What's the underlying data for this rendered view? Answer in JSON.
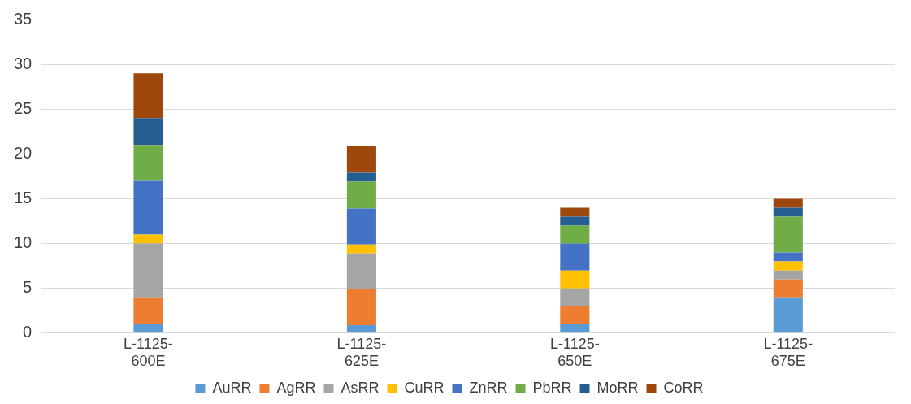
{
  "chart_data": {
    "type": "bar",
    "stacked": true,
    "categories": [
      "L-1125-600E",
      "L-1125-625E",
      "L-1125-650E",
      "L-1125-675E"
    ],
    "series": [
      {
        "name": "AuRR",
        "color": "#5b9bd5",
        "values": [
          1,
          0.9,
          1,
          4
        ]
      },
      {
        "name": "AgRR",
        "color": "#ed7d31",
        "values": [
          3,
          4,
          2,
          2
        ]
      },
      {
        "name": "AsRR",
        "color": "#a5a5a5",
        "values": [
          6,
          4,
          2,
          1
        ]
      },
      {
        "name": "CuRR",
        "color": "#ffc000",
        "values": [
          1,
          1,
          2,
          1
        ]
      },
      {
        "name": "ZnRR",
        "color": "#4472c4",
        "values": [
          6,
          4,
          3,
          1
        ]
      },
      {
        "name": "PbRR",
        "color": "#70ad47",
        "values": [
          4,
          3,
          2,
          4
        ]
      },
      {
        "name": "MoRR",
        "color": "#255e91",
        "values": [
          3,
          1,
          1,
          1
        ]
      },
      {
        "name": "CoRR",
        "color": "#9e480e",
        "values": [
          5,
          3,
          1,
          1
        ]
      }
    ],
    "ylim": [
      0,
      35
    ],
    "yticks": [
      0,
      5,
      10,
      15,
      20,
      25,
      30,
      35
    ],
    "grid": "y",
    "legend": "bottom"
  }
}
